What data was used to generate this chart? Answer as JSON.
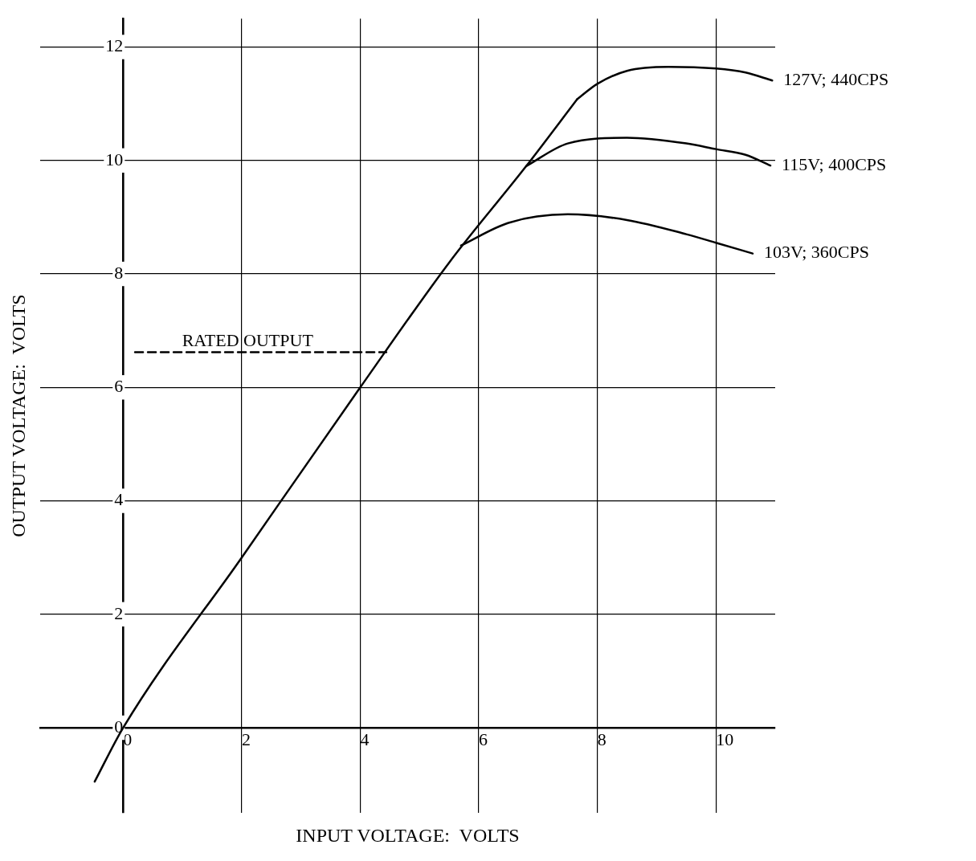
{
  "chart_data": {
    "type": "line",
    "xlabel": "INPUT VOLTAGE:  VOLTS",
    "ylabel": "OUTPUT VOLTAGE:  VOLTS",
    "xlim": [
      -1.4,
      11
    ],
    "ylim": [
      -1.5,
      12.5
    ],
    "xticks": [
      0,
      2,
      4,
      6,
      8,
      10
    ],
    "yticks": [
      0,
      2,
      4,
      6,
      8,
      10,
      12
    ],
    "grid": true,
    "legend": false,
    "marker": "none",
    "series": [
      {
        "color": "#000000",
        "x": [
          -0.48,
          0,
          2,
          4,
          5.5,
          6.8,
          7.66
        ],
        "values": [
          -0.95,
          0,
          3,
          6,
          8.2,
          9.9,
          11.08
        ]
      },
      {
        "name": "127V; 440CPS",
        "color": "#000000",
        "x": [
          7.66,
          8,
          8.5,
          9.2,
          10,
          10.5,
          10.95
        ],
        "values": [
          11.08,
          11.35,
          11.58,
          11.65,
          11.62,
          11.55,
          11.41
        ]
      },
      {
        "name": "115V; 400CPS",
        "color": "#000000",
        "x": [
          6.8,
          7.5,
          8.5,
          9.5,
          10,
          10.5,
          10.92
        ],
        "values": [
          9.9,
          10.3,
          10.4,
          10.3,
          10.2,
          10.1,
          9.91
        ]
      },
      {
        "name": "103V; 360CPS",
        "color": "#000000",
        "x": [
          5.7,
          6.5,
          7.5,
          8.5,
          9.5,
          10,
          10.62
        ],
        "values": [
          8.5,
          8.9,
          9.05,
          8.95,
          8.7,
          8.55,
          8.36
        ]
      },
      {
        "color": "#000000",
        "line_style": "dashed",
        "x": [
          0.2,
          4.44
        ],
        "values": [
          6.62,
          6.62
        ]
      }
    ],
    "annotations": [
      {
        "text": "RATED OUTPUT",
        "x": 2.1,
        "y": 6.62
      }
    ]
  }
}
